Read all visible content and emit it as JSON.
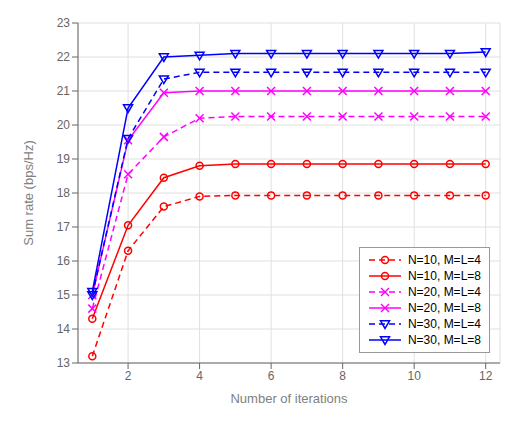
{
  "chart_data": {
    "type": "line",
    "x_label": "Number of iterations",
    "y_label": "Sum rate (bps/Hz)",
    "x": [
      1,
      2,
      3,
      4,
      5,
      6,
      7,
      8,
      9,
      10,
      11,
      12
    ],
    "series": [
      {
        "name": "N=10, M=L=4",
        "color": "#ff0000",
        "line_style": "dashed",
        "marker": "circle",
        "values": [
          13.2,
          16.3,
          17.6,
          17.9,
          17.93,
          17.93,
          17.93,
          17.93,
          17.93,
          17.93,
          17.93,
          17.93
        ]
      },
      {
        "name": "N=10, M=L=8",
        "color": "#ff0000",
        "line_style": "solid",
        "marker": "circle",
        "values": [
          14.3,
          17.05,
          18.45,
          18.8,
          18.85,
          18.85,
          18.85,
          18.85,
          18.85,
          18.85,
          18.85,
          18.85
        ]
      },
      {
        "name": "N=20, M=L=4",
        "color": "#ff00ff",
        "line_style": "dashed",
        "marker": "x",
        "values": [
          14.6,
          18.55,
          19.65,
          20.2,
          20.25,
          20.25,
          20.25,
          20.25,
          20.25,
          20.25,
          20.25,
          20.25
        ]
      },
      {
        "name": "N=20, M=L=8",
        "color": "#ff00ff",
        "line_style": "solid",
        "marker": "x",
        "values": [
          15.0,
          19.55,
          20.95,
          21.0,
          21.0,
          21.0,
          21.0,
          21.0,
          21.0,
          21.0,
          21.0,
          21.0
        ]
      },
      {
        "name": "N=30, M=L=4",
        "color": "#0000ff",
        "line_style": "dashed",
        "marker": "triangle-down",
        "values": [
          15.0,
          19.6,
          21.35,
          21.55,
          21.55,
          21.55,
          21.55,
          21.55,
          21.55,
          21.55,
          21.55,
          21.55
        ]
      },
      {
        "name": "N=30, M=L=8",
        "color": "#0000ff",
        "line_style": "solid",
        "marker": "triangle-down",
        "values": [
          15.1,
          20.5,
          22.0,
          22.05,
          22.1,
          22.1,
          22.1,
          22.1,
          22.1,
          22.1,
          22.1,
          22.15
        ]
      }
    ],
    "xlim": [
      0.6,
      12.4
    ],
    "xticks": [
      2,
      4,
      6,
      8,
      10,
      12
    ],
    "ylim": [
      13,
      23
    ],
    "yticks": [
      13,
      14,
      15,
      16,
      17,
      18,
      19,
      20,
      21,
      22,
      23
    ],
    "grid": true,
    "legend": "lower right"
  }
}
